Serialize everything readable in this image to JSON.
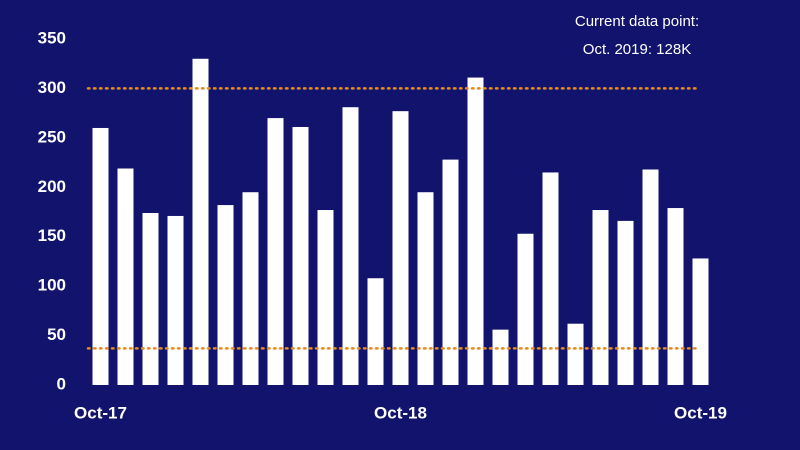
{
  "chart_data": {
    "type": "bar",
    "annotation": [
      "Current data point:",
      "Oct. 2019: 128K"
    ],
    "categories": [
      "Oct-17",
      null,
      null,
      null,
      null,
      null,
      null,
      null,
      null,
      null,
      null,
      null,
      "Oct-18",
      null,
      null,
      null,
      null,
      null,
      null,
      null,
      null,
      null,
      null,
      null,
      "Oct-19"
    ],
    "values": [
      260,
      219,
      174,
      171,
      330,
      182,
      195,
      270,
      261,
      177,
      281,
      108,
      277,
      195,
      228,
      311,
      56,
      153,
      215,
      62,
      177,
      166,
      218,
      179,
      128
    ],
    "color": "#ffffff",
    "ylim": [
      0,
      350
    ],
    "yticks": [
      0,
      50,
      100,
      150,
      200,
      250,
      300,
      350
    ],
    "reference_lines": [
      {
        "value": 300,
        "color": "#e68a1c"
      },
      {
        "value": 37,
        "color": "#e68a1c"
      }
    ]
  }
}
